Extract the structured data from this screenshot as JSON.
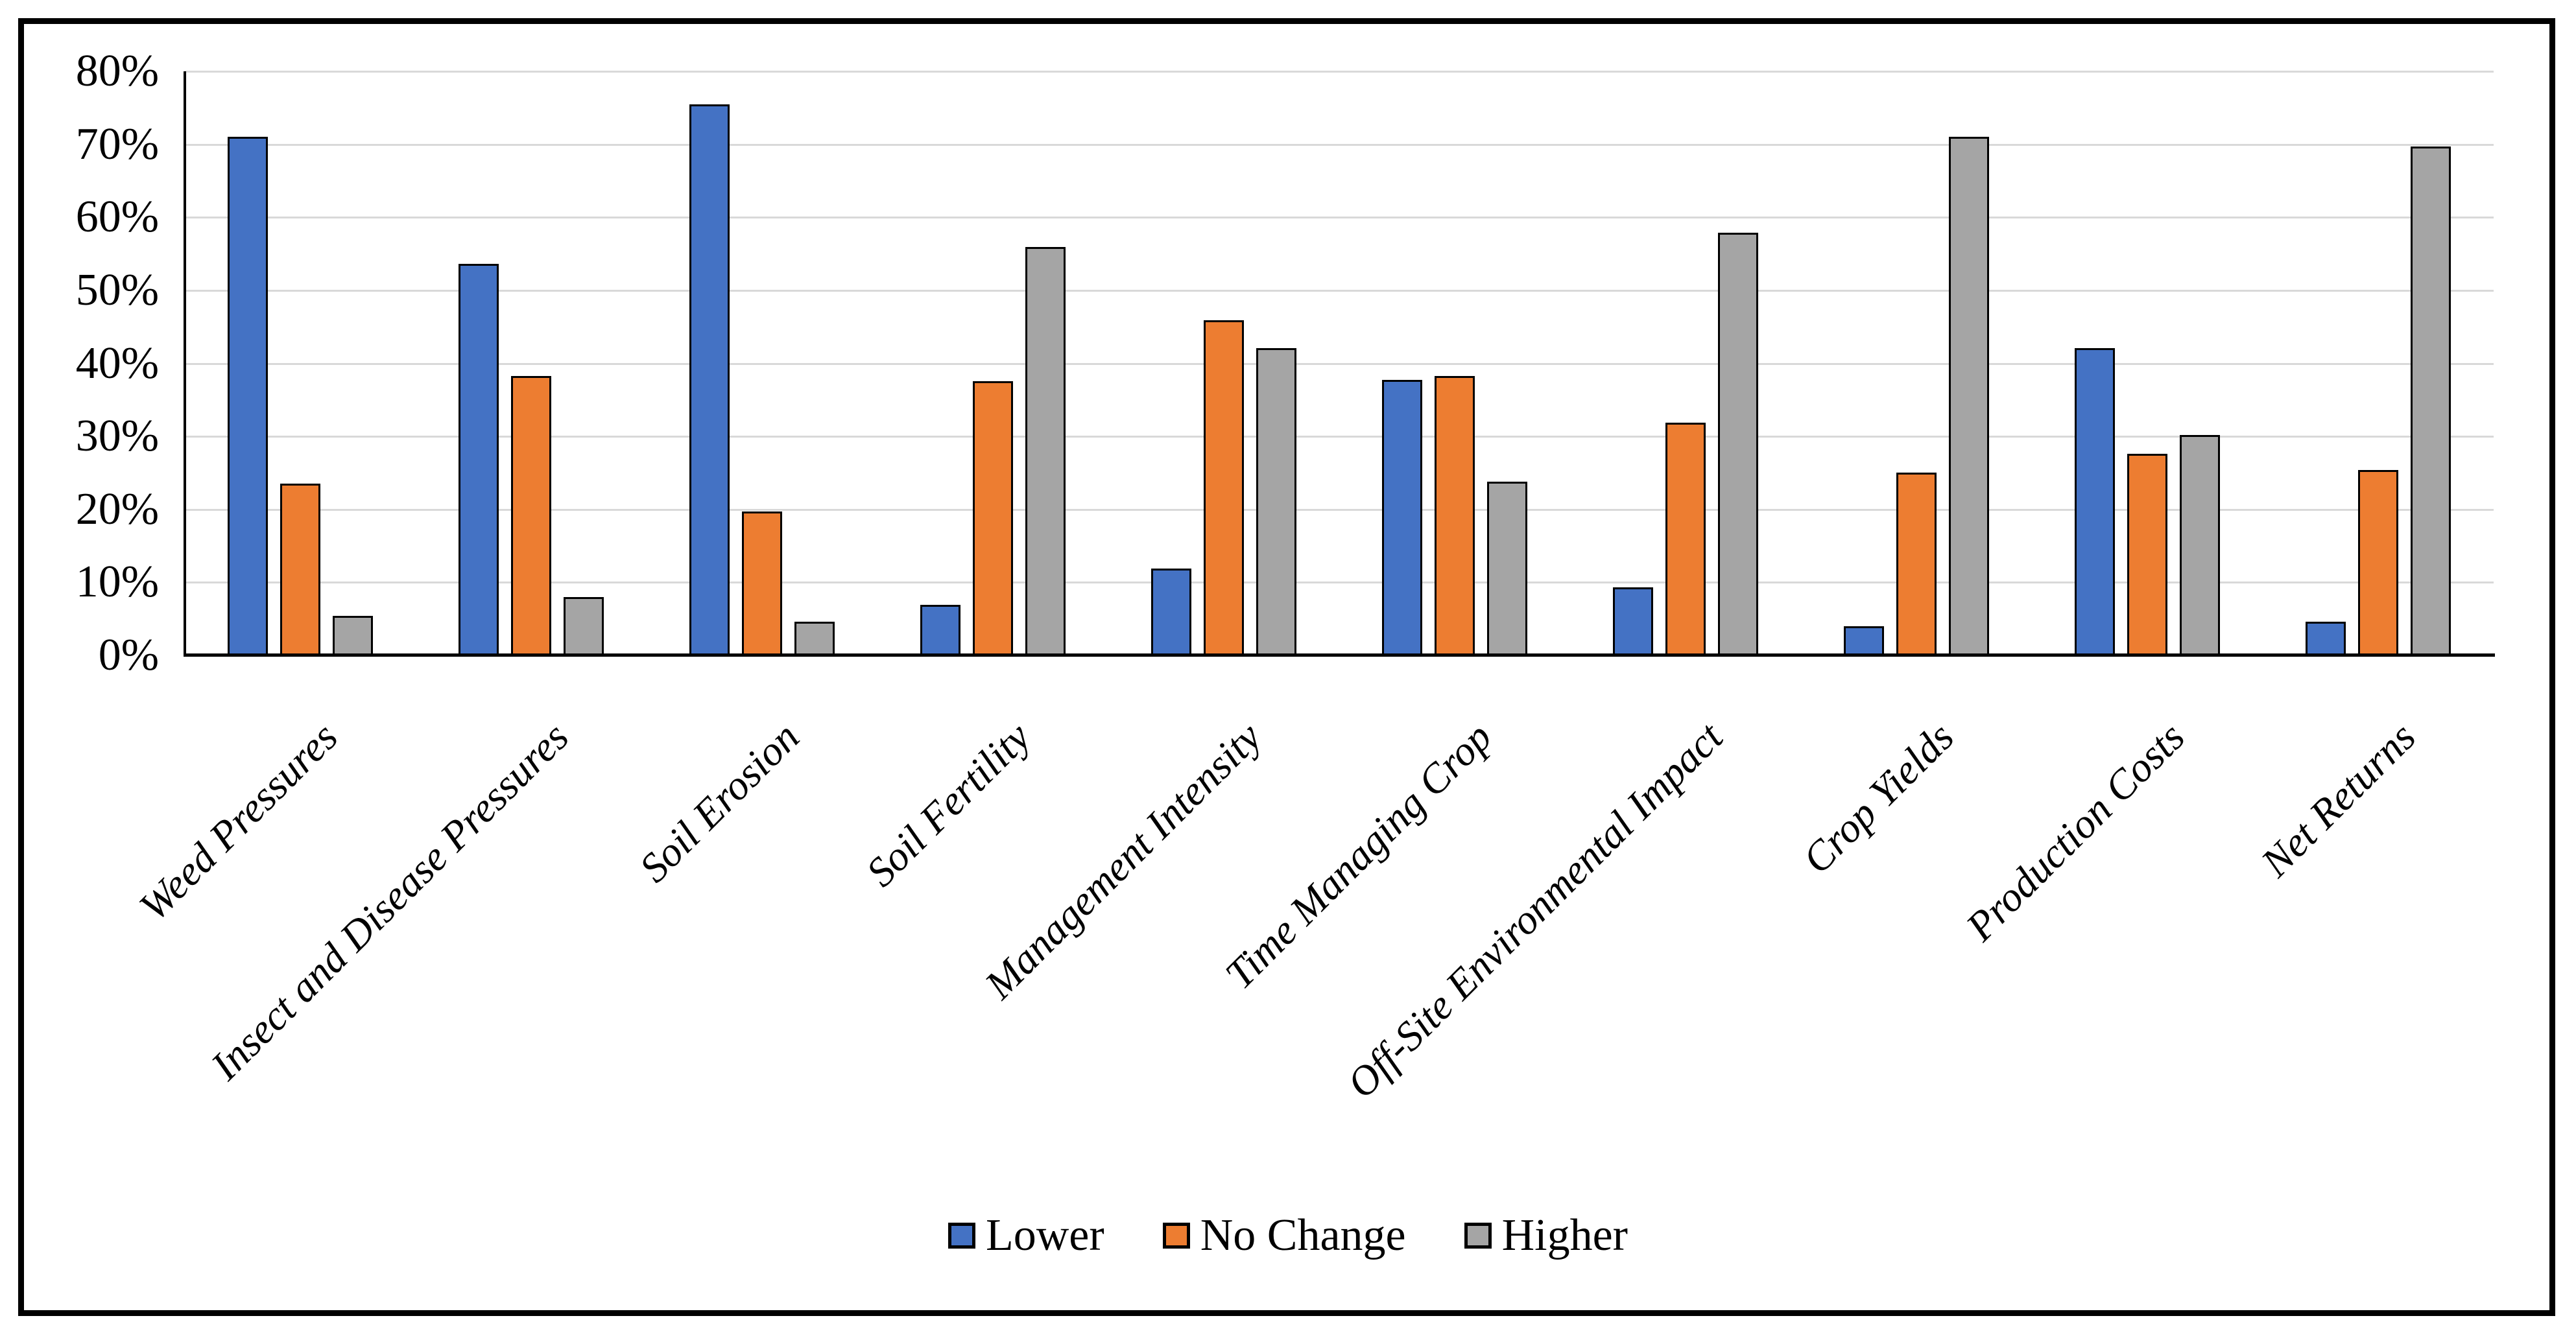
{
  "figure": {
    "background": "#ffffff",
    "frame_color": "#000000"
  },
  "chart_data": {
    "type": "bar",
    "subtype": "clustered-column",
    "title": "",
    "xlabel": "",
    "ylabel": "",
    "ylim": [
      0,
      80
    ],
    "grid": true,
    "gridline_color": "#D9D9D9",
    "axis_color": "#000000",
    "bar_outline_color": "#000000",
    "legend_position": "bottom-center",
    "y_ticks": [
      "0%",
      "10%",
      "20%",
      "30%",
      "40%",
      "50%",
      "60%",
      "70%",
      "80%"
    ],
    "categories": [
      "Weed Pressures",
      "Insect and Disease Pressures",
      "Soil Erosion",
      "Soil Fertility",
      "Management Intensity",
      "Time Managing Crop",
      "Off-Site Environmental Impact",
      "Crop Yields",
      "Production Costs",
      "Net Returns"
    ],
    "series": [
      {
        "name": "Lower",
        "color": "#4472C4",
        "values": [
          71.0,
          53.6,
          75.5,
          6.9,
          11.9,
          37.7,
          9.3,
          4.0,
          42.1,
          4.6
        ]
      },
      {
        "name": "No Change",
        "color": "#ED7D31",
        "values": [
          23.5,
          38.3,
          19.7,
          37.6,
          45.9,
          38.3,
          31.9,
          25.0,
          27.6,
          25.4
        ]
      },
      {
        "name": "Higher",
        "color": "#A5A5A5",
        "values": [
          5.4,
          8.0,
          4.6,
          55.9,
          42.1,
          23.8,
          57.9,
          71.0,
          30.2,
          69.7
        ]
      }
    ]
  }
}
